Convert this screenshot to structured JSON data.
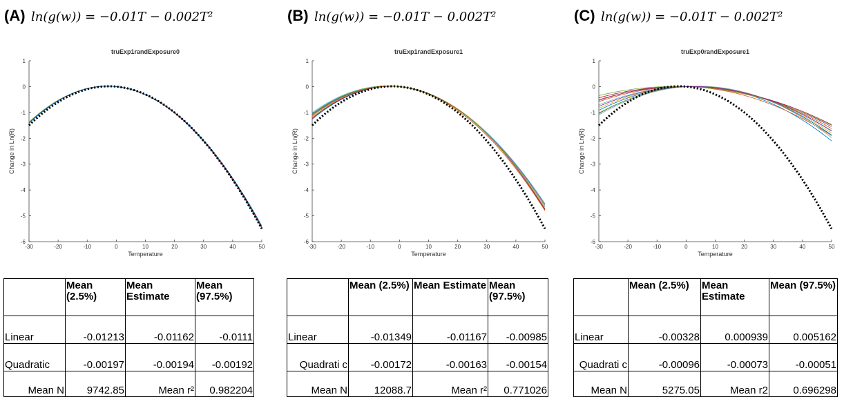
{
  "panels": [
    {
      "label": "(A)",
      "equation": "ln(g(w)) = −0.01T − 0.002T²",
      "table": {
        "header": [
          "",
          "Mean (2.5%)",
          "Mean Estimate",
          "Mean (97.5%)"
        ],
        "rows": [
          [
            "Linear",
            "-0.01213",
            "-0.01162",
            "-0.0111"
          ],
          [
            "Quadratic",
            "-0.00197",
            "-0.00194",
            "-0.00192"
          ],
          [
            "Mean N",
            "9742.85",
            "Mean r²",
            "0.982204"
          ]
        ]
      }
    },
    {
      "label": "(B)",
      "equation": "ln(g(w)) = −0.01T − 0.002T²",
      "table": {
        "header": [
          "",
          "Mean (2.5%)",
          "Mean Estimate",
          "Mean (97.5%)"
        ],
        "rows": [
          [
            "Linear",
            "-0.01349",
            "-0.01167",
            "-0.00985"
          ],
          [
            "Quadrati c",
            "-0.00172",
            "-0.00163",
            "-0.00154"
          ],
          [
            "Mean N",
            "12088.7",
            "Mean r²",
            "0.771026"
          ]
        ]
      }
    },
    {
      "label": "(C)",
      "equation": "ln(g(w)) = −0.01T − 0.002T²",
      "table": {
        "header": [
          "",
          "Mean (2.5%)",
          "Mean Estimate",
          "Mean (97.5%)"
        ],
        "rows": [
          [
            "Linear",
            "-0.00328",
            "0.000939",
            "0.005162"
          ],
          [
            "Quadrati c",
            "-0.00096",
            "-0.00073",
            "-0.00051"
          ],
          [
            "Mean N",
            "5275.05",
            "Mean r2",
            "0.696298"
          ]
        ]
      }
    }
  ],
  "chart_data": [
    {
      "type": "line",
      "title": "truExp1randExposure0",
      "xlabel": "Temperature",
      "ylabel": "Change in Ln(R)",
      "xlim": [
        -30,
        50
      ],
      "ylim": [
        -6,
        1
      ],
      "xticks": [
        -30,
        -20,
        -10,
        0,
        10,
        20,
        30,
        40,
        50
      ],
      "yticks": [
        1,
        0,
        -1,
        -2,
        -3,
        -4,
        -5,
        -6
      ],
      "true_curve": {
        "linear": -0.01,
        "quadratic": -0.002,
        "style": "dotted-black"
      },
      "series_style": "multicolor thin lines",
      "series": [
        {
          "color": "#0072BD",
          "linear": -0.0117,
          "quadratic": -0.00194
        },
        {
          "color": "#D95319",
          "linear": -0.0114,
          "quadratic": -0.00195
        },
        {
          "color": "#EDB120",
          "linear": -0.0121,
          "quadratic": -0.00193
        },
        {
          "color": "#7E2F8E",
          "linear": -0.0112,
          "quadratic": -0.00196
        },
        {
          "color": "#77AC30",
          "linear": -0.0119,
          "quadratic": -0.00192
        },
        {
          "color": "#4DBEEE",
          "linear": -0.0115,
          "quadratic": -0.00197
        },
        {
          "color": "#A2142F",
          "linear": -0.0118,
          "quadratic": -0.00195
        },
        {
          "color": "#0072BD",
          "linear": -0.0113,
          "quadratic": -0.00193
        }
      ]
    },
    {
      "type": "line",
      "title": "truExp1randExposure1",
      "xlabel": "Temperature",
      "ylabel": "Change in Ln(R)",
      "xlim": [
        -30,
        50
      ],
      "ylim": [
        -6,
        1
      ],
      "xticks": [
        -30,
        -20,
        -10,
        0,
        10,
        20,
        30,
        40,
        50
      ],
      "yticks": [
        1,
        0,
        -1,
        -2,
        -3,
        -4,
        -5,
        -6
      ],
      "true_curve": {
        "linear": -0.01,
        "quadratic": -0.002,
        "style": "dotted-black"
      },
      "series_style": "multicolor thin lines",
      "series": [
        {
          "color": "#0072BD",
          "linear": -0.0095,
          "quadratic": -0.00172
        },
        {
          "color": "#D95319",
          "linear": -0.0135,
          "quadratic": -0.00165
        },
        {
          "color": "#EDB120",
          "linear": -0.011,
          "quadratic": -0.0016
        },
        {
          "color": "#7E2F8E",
          "linear": -0.0125,
          "quadratic": -0.00158
        },
        {
          "color": "#77AC30",
          "linear": -0.0105,
          "quadratic": -0.00168
        },
        {
          "color": "#4DBEEE",
          "linear": -0.013,
          "quadratic": -0.00155
        },
        {
          "color": "#A2142F",
          "linear": -0.01,
          "quadratic": -0.0017
        },
        {
          "color": "#0072BD",
          "linear": -0.012,
          "quadratic": -0.00162
        },
        {
          "color": "#D95319",
          "linear": -0.0115,
          "quadratic": -0.00166
        },
        {
          "color": "#77AC30",
          "linear": -0.0128,
          "quadratic": -0.0016
        }
      ]
    },
    {
      "type": "line",
      "title": "truExp0randExposure1",
      "xlabel": "Temperature",
      "ylabel": "Change in Ln(R)",
      "xlim": [
        -30,
        50
      ],
      "ylim": [
        -6,
        1
      ],
      "xticks": [
        -30,
        -20,
        -10,
        0,
        10,
        20,
        30,
        40,
        50
      ],
      "yticks": [
        1,
        0,
        -1,
        -2,
        -3,
        -4,
        -5,
        -6
      ],
      "true_curve": {
        "linear": -0.01,
        "quadratic": -0.002,
        "style": "dotted-black"
      },
      "series_style": "multicolor thin lines",
      "series": [
        {
          "color": "#0072BD",
          "linear": 0.006,
          "quadratic": -0.00096
        },
        {
          "color": "#D95319",
          "linear": -0.003,
          "quadratic": -0.0007
        },
        {
          "color": "#EDB120",
          "linear": 0.004,
          "quadratic": -0.0008
        },
        {
          "color": "#7E2F8E",
          "linear": -0.001,
          "quadratic": -0.0006
        },
        {
          "color": "#77AC30",
          "linear": 0.007,
          "quadratic": -0.0009
        },
        {
          "color": "#4DBEEE",
          "linear": 0.002,
          "quadratic": -0.00072
        },
        {
          "color": "#A2142F",
          "linear": -0.002,
          "quadratic": -0.00055
        },
        {
          "color": "#0072BD",
          "linear": 0.005,
          "quadratic": -0.00085
        },
        {
          "color": "#D95319",
          "linear": 0.0,
          "quadratic": -0.00065
        },
        {
          "color": "#999999",
          "linear": 0.008,
          "quadratic": -0.00095
        },
        {
          "color": "#77AC30",
          "linear": -0.004,
          "quadratic": -0.00052
        },
        {
          "color": "#7E2F8E",
          "linear": 0.003,
          "quadratic": -0.00075
        }
      ]
    }
  ]
}
